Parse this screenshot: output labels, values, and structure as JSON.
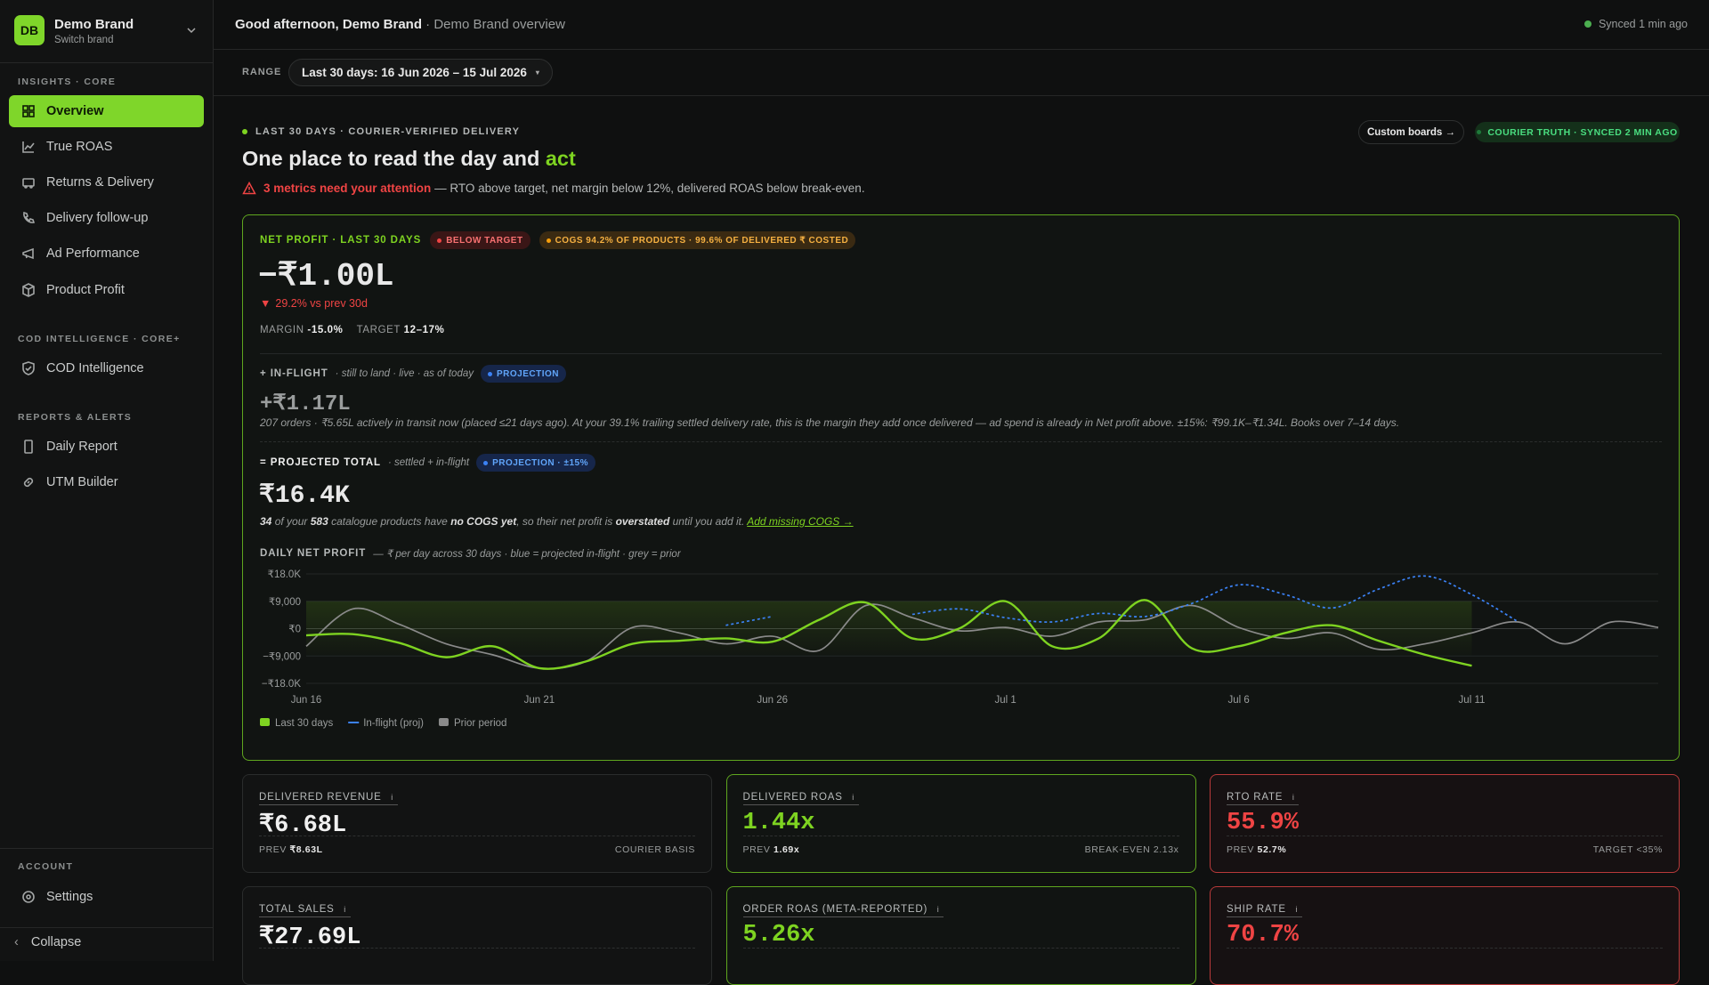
{
  "sidebar": {
    "initials": "DB",
    "brand": "Demo Brand",
    "switch": "Switch brand",
    "sections": [
      {
        "title": "INSIGHTS · CORE",
        "items": [
          "Overview",
          "True ROAS",
          "Returns & Delivery",
          "Delivery follow-up",
          "Ad Performance",
          "Product Profit"
        ]
      },
      {
        "title": "COD INTELLIGENCE · CORE+",
        "items": [
          "COD Intelligence"
        ]
      },
      {
        "title": "REPORTS & ALERTS",
        "items": [
          "Daily Report",
          "UTM Builder"
        ]
      }
    ],
    "account": {
      "title": "ACCOUNT",
      "items": [
        "Settings"
      ]
    },
    "collapse": "Collapse"
  },
  "header": {
    "greeting": "Good afternoon, Demo Brand",
    "sub": "· Demo Brand overview",
    "sync": "Synced 1 min ago"
  },
  "range": {
    "label": "RANGE",
    "value": "Last 30 days: 16 Jun 2026 – 15 Jul 2026"
  },
  "hero": {
    "eyebrow": "LAST 30 DAYS · COURIER-VERIFIED DELIVERY",
    "title": "One place to read the day and",
    "title_accent": "act",
    "custom_boards": "Custom boards →",
    "truth": "COURIER TRUTH · SYNCED 2 MIN AGO",
    "alert_strong": "3 metrics need your attention",
    "alert_rest": "— RTO above target, net margin below 12%, delivered ROAS below break‑even."
  },
  "net_profit": {
    "label": "NET PROFIT · LAST 30 DAYS",
    "badges": [
      "BELOW TARGET",
      "COGS 94.2% OF PRODUCTS · 99.6% OF DELIVERED ₹ COSTED"
    ],
    "value": "−₹1.00L",
    "change": "29.2% vs prev 30d",
    "margin_label": "MARGIN",
    "margin": "-15.0%",
    "target_label": "TARGET",
    "target": "12–17%"
  },
  "in_flight": {
    "label": "+ IN-FLIGHT",
    "note": "· still to land · live · as of today",
    "badge": "PROJECTION",
    "value": "+₹1.17L",
    "desc": "207 orders · ₹5.65L actively in transit now (placed ≤21 days ago). At your 39.1% trailing settled delivery rate, this is the margin they add once delivered — ad spend is already in Net profit above. ±15%: ₹99.1K–₹1.34L. Books over 7–14 days."
  },
  "projected": {
    "label": "= PROJECTED TOTAL",
    "note": "· settled + in-flight",
    "badge": "PROJECTION · ±15%",
    "value": "₹16.4K",
    "cogs_note": [
      "34",
      " of your ",
      "583",
      " catalogue products have ",
      "no COGS yet",
      ", so their net profit is ",
      "overstated",
      " until you add it. "
    ],
    "cogs_link": "Add missing COGS →"
  },
  "chart_data": {
    "type": "line",
    "title": "DAILY NET PROFIT",
    "subtitle": "— ₹ per day across 30 days · blue = projected in-flight · grey = prior",
    "categories": [
      "Jun 16",
      null,
      null,
      null,
      null,
      "Jun 21",
      null,
      null,
      null,
      null,
      "Jun 26",
      null,
      null,
      null,
      null,
      "Jul 1",
      null,
      null,
      null,
      null,
      "Jul 6",
      null,
      null,
      null,
      null,
      "Jul 11",
      null,
      null,
      null,
      null
    ],
    "series": [
      {
        "name": "Last 30 days",
        "color": "#7ed321",
        "values": [
          -2200,
          -1800,
          -4700,
          -9400,
          -5800,
          -13000,
          -10800,
          -5000,
          -4000,
          -3200,
          -4300,
          2900,
          8600,
          -3200,
          0,
          9000,
          -5800,
          -3200,
          9400,
          -6500,
          -5800,
          -1400,
          1100,
          -4000,
          -8600,
          -12200,
          null,
          null,
          null,
          null
        ]
      },
      {
        "name": "In-flight (proj)",
        "color": "#3b82f6",
        "values": [
          null,
          null,
          null,
          null,
          null,
          null,
          null,
          null,
          null,
          1100,
          4000,
          null,
          null,
          4700,
          6500,
          3600,
          2200,
          5000,
          4000,
          8300,
          14400,
          11200,
          6800,
          13000,
          17300,
          11200,
          2200,
          null,
          null,
          null
        ]
      },
      {
        "name": "Prior period",
        "color": "#8a8a8a",
        "values": [
          -5800,
          6500,
          1400,
          -5000,
          -8600,
          -13000,
          -10800,
          400,
          -1400,
          -5000,
          -2500,
          -7200,
          7600,
          3600,
          -700,
          400,
          -2500,
          2200,
          2900,
          7600,
          400,
          -3200,
          -1400,
          -6800,
          -5000,
          -1400,
          2200,
          -5000,
          2200,
          400
        ]
      }
    ],
    "ylim": [
      -18000,
      18000
    ],
    "yticks": [
      {
        "value": 18000,
        "label": "₹18.0K"
      },
      {
        "value": 9000,
        "label": "₹9,000"
      },
      {
        "value": 0,
        "label": "₹0"
      },
      {
        "value": -9000,
        "label": "−₹9,000"
      },
      {
        "value": -18000,
        "label": "−₹18.0K"
      }
    ],
    "grid": true
  },
  "metrics": [
    {
      "label": "DELIVERED REVENUE",
      "value": "₹6.68L",
      "prev_label": "PREV",
      "prev": "₹8.63L",
      "note": "COURIER BASIS"
    },
    {
      "label": "DELIVERED ROAS",
      "value": "1.44x",
      "prev_label": "PREV",
      "prev": "1.69x",
      "note": "BREAK-EVEN 2.13x"
    },
    {
      "label": "RTO RATE",
      "value": "55.9%",
      "prev_label": "PREV",
      "prev": "52.7%",
      "note": "TARGET <35%"
    },
    {
      "label": "TOTAL SALES",
      "value": "₹27.69L"
    },
    {
      "label": "ORDER ROAS (META-REPORTED)",
      "value": "5.26x"
    },
    {
      "label": "SHIP RATE",
      "value": "70.7%"
    }
  ]
}
